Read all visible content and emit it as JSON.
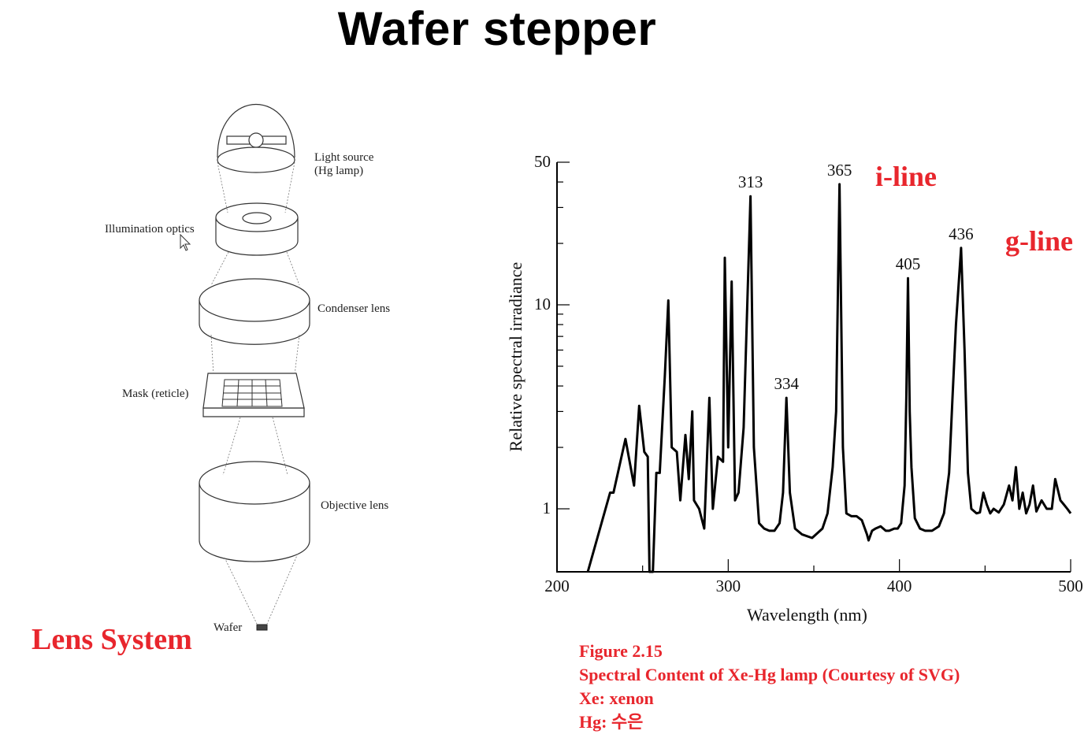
{
  "title": "Wafer stepper",
  "lens_diagram": {
    "heading": "Lens System",
    "labels": {
      "light_source_1": "Light source",
      "light_source_2": "(Hg lamp)",
      "illumination_optics": "Illumination optics",
      "condenser_lens": "Condenser lens",
      "mask": "Mask (reticle)",
      "objective_lens": "Objective lens",
      "wafer": "Wafer"
    }
  },
  "annotations": {
    "i_line": "i-line",
    "g_line": "g-line"
  },
  "caption": {
    "figure": "Figure 2.15",
    "description": "Spectral Content of Xe-Hg lamp (Courtesy of SVG)",
    "xe": "Xe: xenon",
    "hg": "Hg: 수은"
  },
  "chart_data": {
    "type": "line",
    "xlabel": "Wavelength (nm)",
    "ylabel": "Relative spectral irradiance",
    "xlim": [
      200,
      500
    ],
    "ylim": [
      0.5,
      50
    ],
    "yscale": "log",
    "x_ticks": [
      "200",
      "300",
      "400",
      "500"
    ],
    "y_ticks": [
      "1",
      "10",
      "50"
    ],
    "peak_labels": [
      {
        "x": 313,
        "y": 34,
        "text": "313"
      },
      {
        "x": 334,
        "y": 3.5,
        "text": "334"
      },
      {
        "x": 365,
        "y": 39,
        "text": "365"
      },
      {
        "x": 405,
        "y": 13.5,
        "text": "405"
      },
      {
        "x": 436,
        "y": 19,
        "text": "436"
      }
    ],
    "series": [
      {
        "x": [
          218,
          231,
          233,
          240,
          245,
          248,
          251,
          253,
          254,
          256,
          258,
          260,
          263,
          265,
          267,
          270,
          272,
          275,
          277,
          279,
          280,
          283,
          286,
          289,
          291,
          294,
          297,
          298,
          300,
          302,
          304,
          306,
          309,
          313,
          315,
          318,
          321,
          324,
          327,
          330,
          332,
          334,
          336,
          339,
          343,
          349,
          355,
          358,
          361,
          363,
          365,
          367,
          369,
          372,
          375,
          378,
          381,
          382,
          384,
          386,
          389,
          392,
          394,
          397,
          399,
          401,
          403,
          404,
          405,
          406,
          407,
          409,
          412,
          415,
          419,
          423,
          426,
          429,
          431,
          433,
          436,
          438,
          440,
          442,
          445,
          447,
          449,
          451,
          453,
          455,
          458,
          461,
          464,
          466,
          468,
          470,
          472,
          474,
          476,
          478,
          480,
          483,
          486,
          489,
          491,
          494,
          496,
          498,
          500
        ],
        "y": [
          0.45,
          1.2,
          1.2,
          2.2,
          1.3,
          3.2,
          1.9,
          1.8,
          0.45,
          0.45,
          1.5,
          1.5,
          4.5,
          10.5,
          2.0,
          1.9,
          1.1,
          2.3,
          1.4,
          3.0,
          1.1,
          1.0,
          0.8,
          3.5,
          1.0,
          1.8,
          1.7,
          17.0,
          2.0,
          13.0,
          1.1,
          1.2,
          2.5,
          34.0,
          2.0,
          0.85,
          0.8,
          0.78,
          0.78,
          0.85,
          1.2,
          3.5,
          1.2,
          0.8,
          0.75,
          0.72,
          0.8,
          0.95,
          1.6,
          3.0,
          39.0,
          2.0,
          0.95,
          0.92,
          0.92,
          0.88,
          0.75,
          0.7,
          0.78,
          0.8,
          0.82,
          0.78,
          0.78,
          0.8,
          0.8,
          0.85,
          1.3,
          3.5,
          13.5,
          3.0,
          1.6,
          0.9,
          0.8,
          0.78,
          0.78,
          0.82,
          0.95,
          1.5,
          3.5,
          8.0,
          19.0,
          6.0,
          1.5,
          1.0,
          0.95,
          0.96,
          1.2,
          1.05,
          0.95,
          1.0,
          0.96,
          1.05,
          1.3,
          1.1,
          1.6,
          1.0,
          1.2,
          0.95,
          1.05,
          1.3,
          0.97,
          1.1,
          1.0,
          1.0,
          1.4,
          1.1,
          1.05,
          1.0,
          0.95
        ]
      }
    ]
  }
}
